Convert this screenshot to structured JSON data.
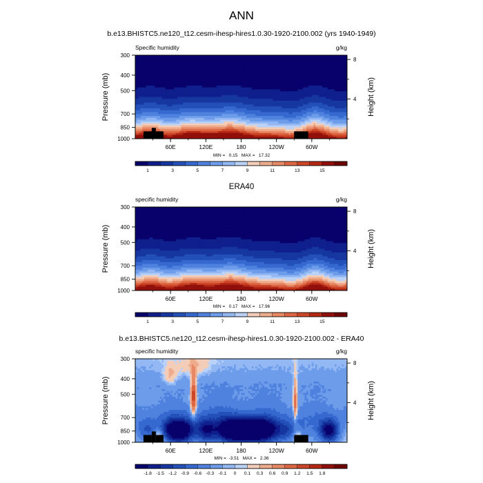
{
  "page_title": "ANN",
  "chart_data": [
    {
      "type": "heatmap",
      "title": "b.e13.BHISTC5.ne120_t12.cesm-ihesp-hires1.0.30-1920-2100.002 (yrs 1940-1949)",
      "left_label": "Specific humidity",
      "units": "g/kg",
      "ylabel": "Pressure (mb)",
      "y2label": "Height (km)",
      "xlabel": "",
      "x_ticks": [
        "60E",
        "120E",
        "180",
        "120W",
        "60W"
      ],
      "x_tick_lon": [
        60,
        120,
        180,
        240,
        300
      ],
      "xlim": [
        0,
        360
      ],
      "y_ticks": [
        "300",
        "400",
        "500",
        "700",
        "850",
        "1000"
      ],
      "y_tick_p": [
        300,
        400,
        500,
        700,
        850,
        1000
      ],
      "ylim": [
        300,
        1000
      ],
      "y2_ticks": [
        "8",
        "4"
      ],
      "y2_tick_km": [
        8,
        4
      ],
      "min": 0.15,
      "max": 17.32,
      "stats": "MIN =   0.15   MAX =   17.32",
      "colorbar_levels": [
        0,
        1,
        2,
        3,
        4,
        5,
        6,
        7,
        8,
        9,
        10,
        11,
        12,
        13,
        14,
        15,
        16
      ],
      "colorbar_labels": [
        "1",
        "3",
        "5",
        "7",
        "9",
        "11",
        "13",
        "15"
      ],
      "colorbar_label_values": [
        1,
        3,
        5,
        7,
        9,
        11,
        13,
        15
      ],
      "colormap": "diverging",
      "field": "mean",
      "show_topography": true
    },
    {
      "type": "heatmap",
      "title": "ERA40",
      "left_label": "specific humidity",
      "units": "g/kg",
      "ylabel": "Pressure (mb)",
      "y2label": "Height (km)",
      "xlabel": "",
      "x_ticks": [
        "60E",
        "120E",
        "180",
        "120W",
        "60W"
      ],
      "x_tick_lon": [
        60,
        120,
        180,
        240,
        300
      ],
      "xlim": [
        0,
        360
      ],
      "y_ticks": [
        "300",
        "400",
        "500",
        "700",
        "850",
        "1000"
      ],
      "y_tick_p": [
        300,
        400,
        500,
        700,
        850,
        1000
      ],
      "ylim": [
        300,
        1000
      ],
      "y2_ticks": [
        "8",
        "4"
      ],
      "y2_tick_km": [
        8,
        4
      ],
      "min": 0.17,
      "max": 17.96,
      "stats": "MIN =   0.17   MAX =   17.96",
      "colorbar_levels": [
        0,
        1,
        2,
        3,
        4,
        5,
        6,
        7,
        8,
        9,
        10,
        11,
        12,
        13,
        14,
        15,
        16
      ],
      "colorbar_labels": [
        "1",
        "3",
        "5",
        "7",
        "9",
        "11",
        "13",
        "15"
      ],
      "colorbar_label_values": [
        1,
        3,
        5,
        7,
        9,
        11,
        13,
        15
      ],
      "colormap": "diverging",
      "field": "mean",
      "show_topography": false
    },
    {
      "type": "heatmap",
      "title": "b.e13.BHISTC5.ne120_t12.cesm-ihesp-hires1.0.30-1920-2100.002 - ERA40",
      "left_label": "specific humidity",
      "units": "g/kg",
      "ylabel": "Pressure (mb)",
      "y2label": "Height (km)",
      "xlabel": "",
      "x_ticks": [
        "60E",
        "120E",
        "180",
        "120W",
        "60W"
      ],
      "x_tick_lon": [
        60,
        120,
        180,
        240,
        300
      ],
      "xlim": [
        0,
        360
      ],
      "y_ticks": [
        "300",
        "400",
        "500",
        "700",
        "850",
        "1000"
      ],
      "y_tick_p": [
        300,
        400,
        500,
        700,
        850,
        1000
      ],
      "ylim": [
        300,
        1000
      ],
      "y2_ticks": [
        "8",
        "4"
      ],
      "y2_tick_km": [
        8,
        4
      ],
      "min": -3.51,
      "max": 2.36,
      "stats": "MIN =  -3.51   MAX =   2.36",
      "colorbar_levels": [
        -2.1,
        -1.8,
        -1.5,
        -1.2,
        -0.9,
        -0.6,
        -0.3,
        -0.1,
        0,
        0.1,
        0.3,
        0.6,
        0.9,
        1.2,
        1.5,
        1.8,
        2.1
      ],
      "colorbar_labels": [
        "-1.8",
        "-1.5",
        "-1.2",
        "-0.9",
        "-0.6",
        "-0.3",
        "-0.1",
        "0",
        "0.1",
        "0.3",
        "0.6",
        "0.9",
        "1.2",
        "1.5",
        "1.8"
      ],
      "colorbar_label_values": [
        -1.8,
        -1.5,
        -1.2,
        -0.9,
        -0.6,
        -0.3,
        -0.1,
        0,
        0.1,
        0.3,
        0.6,
        0.9,
        1.2,
        1.5,
        1.8
      ],
      "colormap": "diverging",
      "field": "difference",
      "show_topography": true
    }
  ],
  "colors": [
    "#08006b",
    "#0f1f8c",
    "#16379f",
    "#2350b9",
    "#3669d0",
    "#4f82de",
    "#6d9cea",
    "#93b8f4",
    "#bad1f8",
    "#f4cdb8",
    "#efac8c",
    "#e88966",
    "#dd6644",
    "#cc4628",
    "#b42814",
    "#92100b",
    "#6e0204"
  ],
  "topography_color": "#000000"
}
